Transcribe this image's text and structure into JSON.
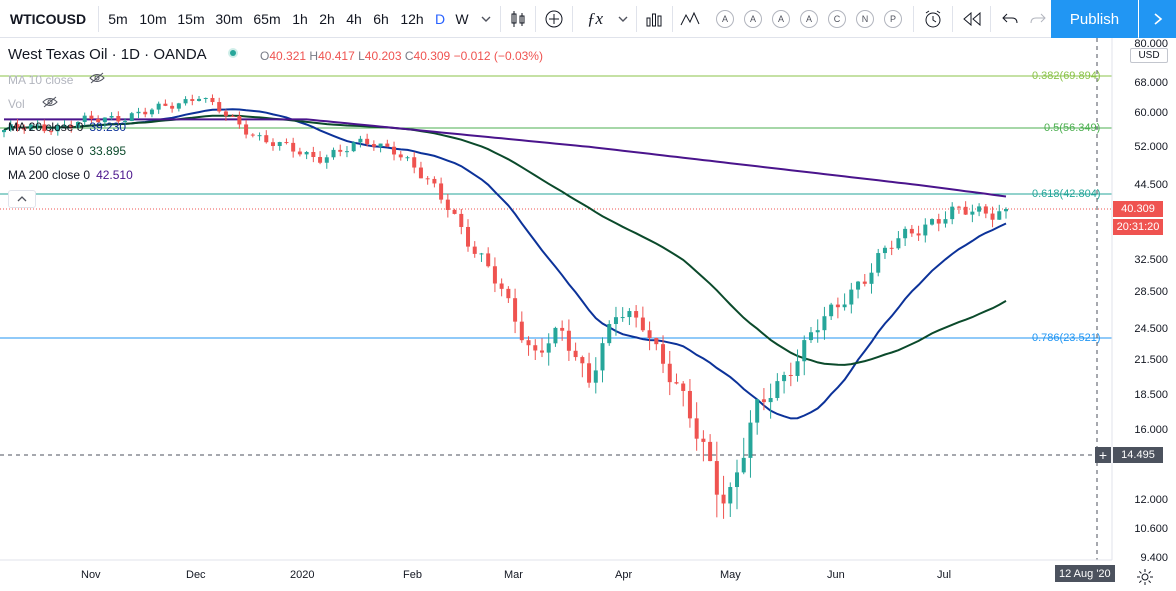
{
  "toolbar": {
    "symbol": "WTICOUSD",
    "timeframes": [
      "5m",
      "10m",
      "15m",
      "30m",
      "65m",
      "1h",
      "2h",
      "4h",
      "6h",
      "12h",
      "D",
      "W"
    ],
    "active_timeframe": "D",
    "drawing_letters": [
      "A",
      "A",
      "A",
      "A",
      "C",
      "N",
      "P"
    ],
    "publish_label": "Publish"
  },
  "legend": {
    "title": "West Texas Oil · 1D · OANDA",
    "open_key": "O",
    "open": "40.321",
    "high_key": "H",
    "high": "40.417",
    "low_key": "L",
    "low": "40.203",
    "close_key": "C",
    "close": "40.309",
    "change": "−0.012 (−0.03%)",
    "ma10": "MA 10 close",
    "vol": "Vol",
    "ma20": "MA 20 close 0",
    "ma20_value": "39.230",
    "ma50": "MA 50 close 0",
    "ma50_value": "33.895",
    "ma200": "MA 200 close 0",
    "ma200_value": "42.510"
  },
  "price_axis": {
    "ticks": [
      "80.000",
      "68.000",
      "60.000",
      "52.000",
      "44.500",
      "32.500",
      "28.500",
      "24.500",
      "21.500",
      "18.500",
      "16.000",
      "12.000",
      "10.600",
      "9.400"
    ],
    "currency": "USD",
    "last_price": "40.309",
    "countdown": "20:31:20",
    "crosshair_price": "14.495"
  },
  "time_axis": {
    "labels": [
      "Nov",
      "Dec",
      "2020",
      "Feb",
      "Mar",
      "Apr",
      "May",
      "Jun",
      "Jul"
    ],
    "crosshair_date": "12 Aug '20"
  },
  "fib_levels": [
    {
      "label": "0.382(69.894)",
      "color": "#8bc34a"
    },
    {
      "label": "0.5(56.349)",
      "color": "#4caf50"
    },
    {
      "label": "0.618(42.804)",
      "color": "#26a69a"
    },
    {
      "label": "0.786(23.521)",
      "color": "#2196f3"
    }
  ],
  "colors": {
    "up": "#26a69a",
    "down": "#ef5350",
    "ma20": "#0c3299",
    "ma50": "#0b4a2b",
    "ma200": "#4a148c",
    "accent": "#2962ff",
    "publish": "#2196f3"
  },
  "chart_data": {
    "type": "candlestick",
    "symbol": "WTICOUSD",
    "x": [
      "Nov",
      "Dec",
      "2020",
      "Feb",
      "Mar",
      "Apr",
      "May",
      "Jun",
      "Jul"
    ],
    "close_path": [
      56,
      56.5,
      57,
      58,
      59,
      60,
      62,
      65,
      59,
      55,
      52,
      50,
      51,
      53,
      52,
      46,
      41,
      33,
      28,
      22,
      24,
      20,
      26,
      25,
      20,
      15,
      12,
      17,
      20,
      24,
      27,
      31,
      35,
      38,
      39.5,
      40,
      40.3
    ],
    "last_close": 40.309
  }
}
